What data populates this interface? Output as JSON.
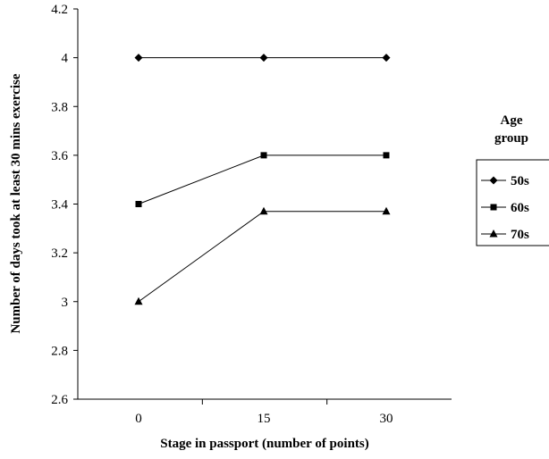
{
  "chart_data": {
    "type": "line",
    "categories": [
      "0",
      "15",
      "30"
    ],
    "series": [
      {
        "name": "50s",
        "marker": "diamond",
        "values": [
          4.0,
          4.0,
          4.0
        ]
      },
      {
        "name": "60s",
        "marker": "square",
        "values": [
          3.4,
          3.6,
          3.6
        ]
      },
      {
        "name": "70s",
        "marker": "triangle",
        "values": [
          3.0,
          3.37,
          3.37
        ]
      }
    ],
    "title": "",
    "xlabel": "Stage in passport (number of points)",
    "ylabel": "Number of days took at least 30 mins exercise",
    "ylim": [
      2.6,
      4.2
    ],
    "yticks": [
      "2.6",
      "2.8",
      "3",
      "3.2",
      "3.4",
      "3.6",
      "3.8",
      "4",
      "4.2"
    ],
    "grid": false,
    "legend": {
      "title_line1": "Age",
      "title_line2": "group",
      "placement": "right"
    }
  },
  "colors": {
    "line": "#000000",
    "background": "#ffffff"
  }
}
